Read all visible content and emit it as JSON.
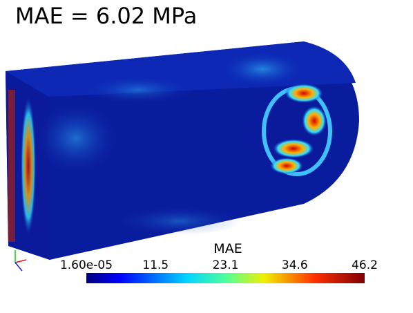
{
  "title": "MAE = 6.02 MPa",
  "colorbar": {
    "title": "MAE",
    "ticks": [
      {
        "value": 1.6e-05,
        "label": "1.60e-05"
      },
      11.5,
      23.1,
      34.6,
      46.2
    ]
  }
}
